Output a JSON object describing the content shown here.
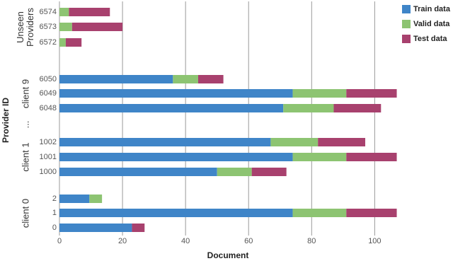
{
  "chart_data": {
    "type": "stacked-barh",
    "x_label": "Document",
    "y_label": "Provider ID",
    "categories": [
      "6574",
      "6573",
      "6572",
      "6050",
      "6049",
      "6048",
      "1002",
      "1001",
      "1000",
      "2",
      "1",
      "0"
    ],
    "groups": [
      "Unseen Providers",
      "client 9",
      "...",
      "client 1",
      "client 0"
    ],
    "series": [
      {
        "name": "Train data",
        "color": "#3f85c8",
        "values": [
          0,
          0,
          0,
          36,
          74,
          71,
          67,
          74,
          50,
          9.5,
          74,
          23
        ]
      },
      {
        "name": "Valid data",
        "color": "#8dc472",
        "values": [
          3,
          4,
          2,
          8,
          17,
          16,
          15,
          17,
          11,
          4,
          17,
          0
        ]
      },
      {
        "name": "Test  data",
        "color": "#a8416e",
        "values": [
          13,
          16,
          5,
          8,
          16,
          15,
          15,
          16,
          11,
          0,
          16,
          4
        ]
      }
    ],
    "xlim": [
      0,
      108
    ],
    "xticks": [
      0,
      20,
      40,
      60,
      80,
      100
    ],
    "grid": true,
    "legend": "top-right"
  }
}
